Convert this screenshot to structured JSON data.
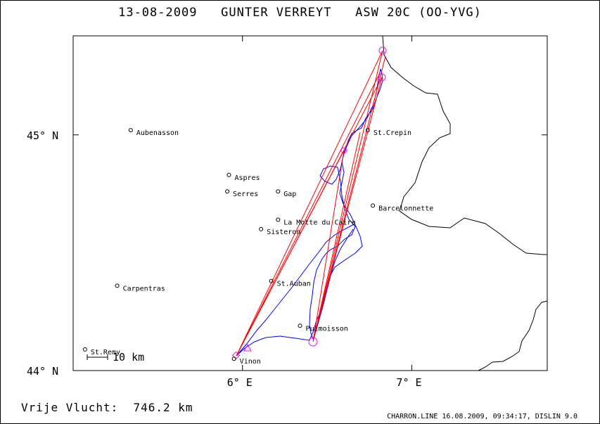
{
  "title": "13-08-2009   GUNTER VERREYT   ASW 20C (OO-YVG)",
  "axes": {
    "lat_labels": [
      {
        "value": 45,
        "text": "45° N"
      },
      {
        "value": 44,
        "text": "44° N"
      }
    ],
    "lon_labels": [
      {
        "value": 6,
        "text": "6° E"
      },
      {
        "value": 7,
        "text": "7° E"
      }
    ],
    "lat_range": [
      44.0,
      45.42
    ],
    "lon_range": [
      5.0,
      7.8
    ]
  },
  "places": [
    {
      "name": "Aubenasson",
      "lon": 5.34,
      "lat": 45.02
    },
    {
      "name": "Aspres",
      "lon": 5.92,
      "lat": 44.83
    },
    {
      "name": "Serres",
      "lon": 5.91,
      "lat": 44.76
    },
    {
      "name": "Gap",
      "lon": 6.21,
      "lat": 44.76
    },
    {
      "name": "La Motte du Caire",
      "lon": 6.21,
      "lat": 44.64
    },
    {
      "name": "Sisteron",
      "lon": 6.11,
      "lat": 44.6
    },
    {
      "name": "St.Auban",
      "lon": 6.17,
      "lat": 44.38
    },
    {
      "name": "Carpentras",
      "lon": 5.26,
      "lat": 44.36
    },
    {
      "name": "Puimoisson",
      "lon": 6.34,
      "lat": 44.19
    },
    {
      "name": "St.Remy",
      "lon": 5.07,
      "lat": 44.09
    },
    {
      "name": "Vinon",
      "lon": 5.95,
      "lat": 44.05
    },
    {
      "name": "St.Crepin",
      "lon": 6.74,
      "lat": 45.02
    },
    {
      "name": "Barcelonnette",
      "lon": 6.77,
      "lat": 44.7
    }
  ],
  "scale_bar": "10 km",
  "distance_text": "Vrije Vlucht:  746.2 km",
  "footer_text": "CHARRON.LINE 16.08.2009, 09:34:17, DISLIN 9.0",
  "turnpoints": [
    {
      "lon": 6.79,
      "lat": 45.35
    },
    {
      "lon": 6.79,
      "lat": 45.24
    },
    {
      "lon": 6.4,
      "lat": 44.12
    },
    {
      "lon": 6.55,
      "lat": 44.92
    },
    {
      "lon": 5.95,
      "lat": 44.05
    }
  ],
  "colors": {
    "route": "#ff0000",
    "track": "#0000ff",
    "turnpoint": "#ff00ff",
    "border": "#000000"
  }
}
